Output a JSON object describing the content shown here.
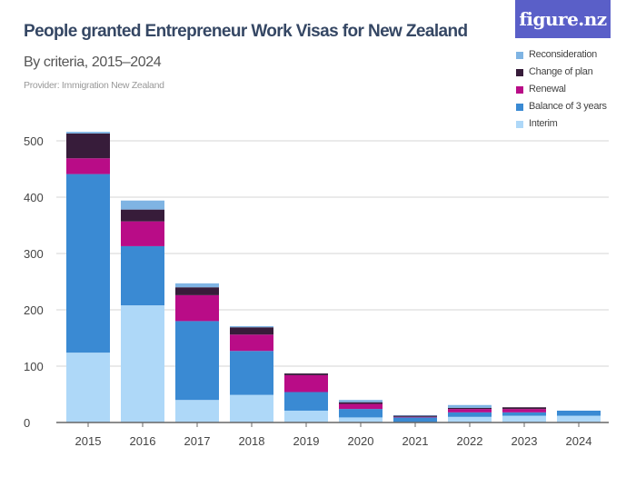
{
  "header": {
    "title": "People granted Entrepreneur Work Visas for New Zealand",
    "subtitle": "By criteria, 2015–2024",
    "provider": "Provider: Immigration New Zealand",
    "logo": "figure.nz"
  },
  "chart_data": {
    "type": "bar",
    "stacked": true,
    "title": "People granted Entrepreneur Work Visas for New Zealand",
    "subtitle": "By criteria, 2015–2024",
    "xlabel": "",
    "ylabel": "",
    "ylim": [
      0,
      500
    ],
    "yticks": [
      0,
      100,
      200,
      300,
      400,
      500
    ],
    "grid": true,
    "legend_position": "top-right",
    "categories": [
      "2015",
      "2016",
      "2017",
      "2018",
      "2019",
      "2020",
      "2021",
      "2022",
      "2023",
      "2024"
    ],
    "series": [
      {
        "name": "Interim",
        "color": "#aed8f8",
        "values": [
          124,
          208,
          40,
          49,
          21,
          9,
          0,
          10,
          12,
          12
        ]
      },
      {
        "name": "Balance of 3 years",
        "color": "#3a8ad3",
        "values": [
          317,
          105,
          140,
          78,
          33,
          15,
          9,
          8,
          6,
          9
        ]
      },
      {
        "name": "Renewal",
        "color": "#b90c87",
        "values": [
          28,
          44,
          46,
          29,
          30,
          9,
          1,
          6,
          6,
          0
        ]
      },
      {
        "name": "Change of plan",
        "color": "#371c3a",
        "values": [
          44,
          21,
          14,
          13,
          3,
          3,
          2,
          2,
          3,
          0
        ]
      },
      {
        "name": "Reconsideration",
        "color": "#7fb4e3",
        "values": [
          3,
          16,
          7,
          2,
          0,
          4,
          1,
          5,
          0,
          0
        ]
      }
    ]
  }
}
